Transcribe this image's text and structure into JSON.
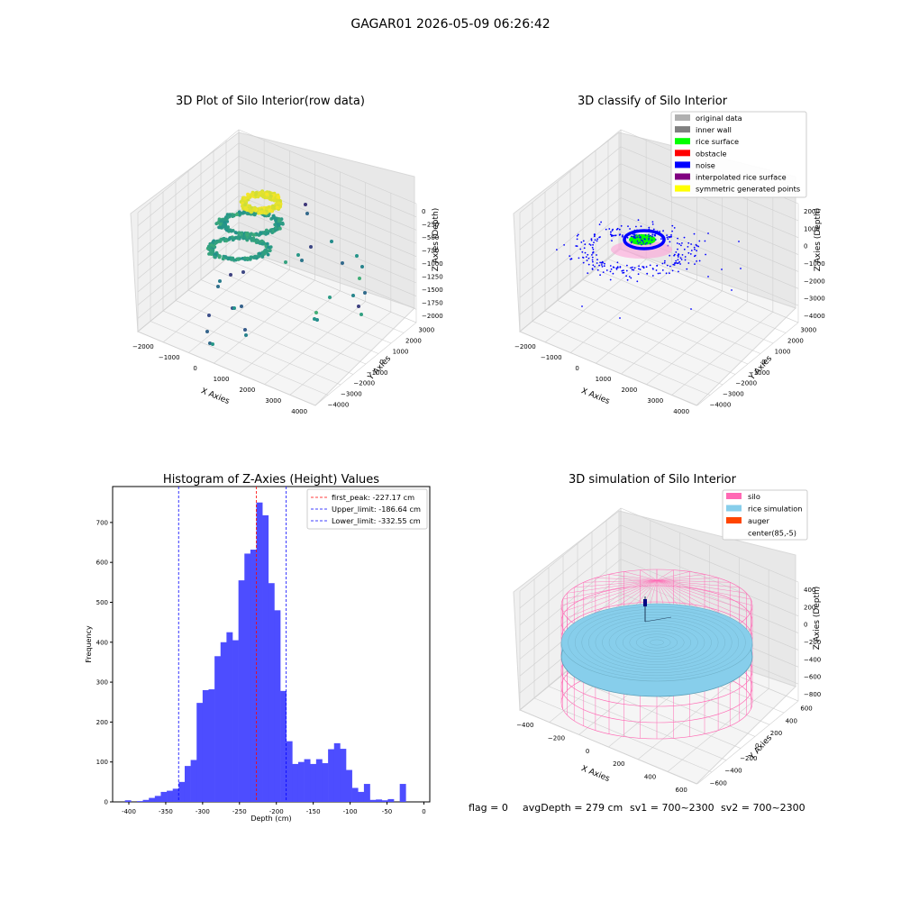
{
  "figure": {
    "title": "GAGAR01 2026-05-09 06:26:42",
    "footer": {
      "flag": "flag = 0",
      "avgDepth": "avgDepth = 279 cm",
      "sv1": "sv1 = 700~2300",
      "sv2": "sv2 = 700~2300"
    }
  },
  "chart_data": [
    {
      "type": "scatter",
      "title": "3D Plot of Silo Interior(row data)",
      "xlabel": "X Axies",
      "ylabel": "Y Axies",
      "zlabel": "Z Axies (Depth)",
      "xticks": [
        "−2000",
        "−1000",
        "0",
        "1000",
        "2000",
        "3000",
        "4000"
      ],
      "yticks": [
        "3000",
        "2000",
        "1000",
        "0",
        "−1000",
        "−2000",
        "−3000",
        "−4000"
      ],
      "zticks": [
        "0",
        "−250",
        "−500",
        "−750",
        "−1000",
        "−1250",
        "−1500",
        "−1750",
        "−2000"
      ],
      "xlim": [
        -2500,
        4500
      ],
      "ylim": [
        -4500,
        3500
      ],
      "zlim": [
        -2150,
        80
      ],
      "colormap": "viridis",
      "grid": true
    },
    {
      "type": "scatter",
      "title": "3D classify of Silo Interior",
      "xlabel": "X Axies",
      "ylabel": "Y Axies",
      "zlabel": "Z Axies (Depth)",
      "xticks": [
        "−2000",
        "−1000",
        "0",
        "1000",
        "2000",
        "3000",
        "4000"
      ],
      "yticks": [
        "3000",
        "2000",
        "1000",
        "0",
        "−1000",
        "−2000",
        "−3000",
        "−4000"
      ],
      "zticks": [
        "2000",
        "1000",
        "0",
        "−1000",
        "−2000",
        "−3000",
        "−4000"
      ],
      "xlim": [
        -2500,
        4500
      ],
      "ylim": [
        -4500,
        3500
      ],
      "zlim": [
        -4600,
        2500
      ],
      "legend_position": "top-right",
      "legend": [
        {
          "label": "original data",
          "color": "#b0b0b0"
        },
        {
          "label": "inner wall",
          "color": "#808080"
        },
        {
          "label": "rice surface",
          "color": "#00ff00"
        },
        {
          "label": "obstacle",
          "color": "#ff0000"
        },
        {
          "label": "noise",
          "color": "#0000ff"
        },
        {
          "label": "interpolated rice surface",
          "color": "#800080"
        },
        {
          "label": "symmetric generated points",
          "color": "#ffff00"
        }
      ],
      "grid": true
    },
    {
      "type": "bar",
      "title": "Histogram of Z-Axies (Height) Values",
      "xlabel": "Depth (cm)",
      "ylabel": "Frequency",
      "xlim": [
        -422,
        8
      ],
      "ylim": [
        0,
        790
      ],
      "xticks": [
        -400,
        -350,
        -300,
        -250,
        -200,
        -150,
        -100,
        -50,
        0
      ],
      "yticks": [
        0,
        100,
        200,
        300,
        400,
        500,
        600,
        700
      ],
      "bin_start": -405.3,
      "bin_width": 8.1,
      "values": [
        4,
        0,
        2,
        5,
        10,
        15,
        25,
        28,
        33,
        50,
        90,
        105,
        248,
        280,
        282,
        365,
        400,
        425,
        405,
        555,
        622,
        632,
        750,
        718,
        548,
        480,
        278,
        152,
        95,
        100,
        107,
        95,
        107,
        97,
        132,
        147,
        133,
        80,
        35,
        25,
        45,
        5,
        6,
        4,
        7,
        0,
        45
      ],
      "bar_color": "#4d4dff",
      "legend_position": "top-right",
      "markers": [
        {
          "label": "first_peak: -227.17 cm",
          "x": -227.17,
          "color": "#ff0000"
        },
        {
          "label": "Upper_limit: -186.64 cm",
          "x": -186.64,
          "color": "#0000ff"
        },
        {
          "label": "Lower_limit: -332.55 cm",
          "x": -332.55,
          "color": "#0000ff"
        }
      ]
    },
    {
      "type": "scatter",
      "title": "3D simulation of Silo Interior",
      "xlabel": "X Axies",
      "ylabel": "Y Axies",
      "zlabel": "Z Axies (Depth)",
      "xticks": [
        "−400",
        "−200",
        "0",
        "200",
        "400",
        "600"
      ],
      "yticks": [
        "600",
        "400",
        "200",
        "0",
        "−200",
        "−400",
        "−600"
      ],
      "zticks": [
        "400",
        "200",
        "0",
        "−200",
        "−400",
        "−600",
        "−800"
      ],
      "xlim": [
        -520,
        720
      ],
      "ylim": [
        -720,
        720
      ],
      "zlim": [
        -900,
        460
      ],
      "legend_position": "top-right",
      "legend": [
        {
          "label": "silo",
          "color": "#ff69b4"
        },
        {
          "label": "rice simulation",
          "color": "#87ceeb"
        },
        {
          "label": "auger",
          "color": "#ff4500"
        },
        {
          "label": "center(85,-5)",
          "color": "#ffffff"
        }
      ],
      "grid": true
    }
  ]
}
